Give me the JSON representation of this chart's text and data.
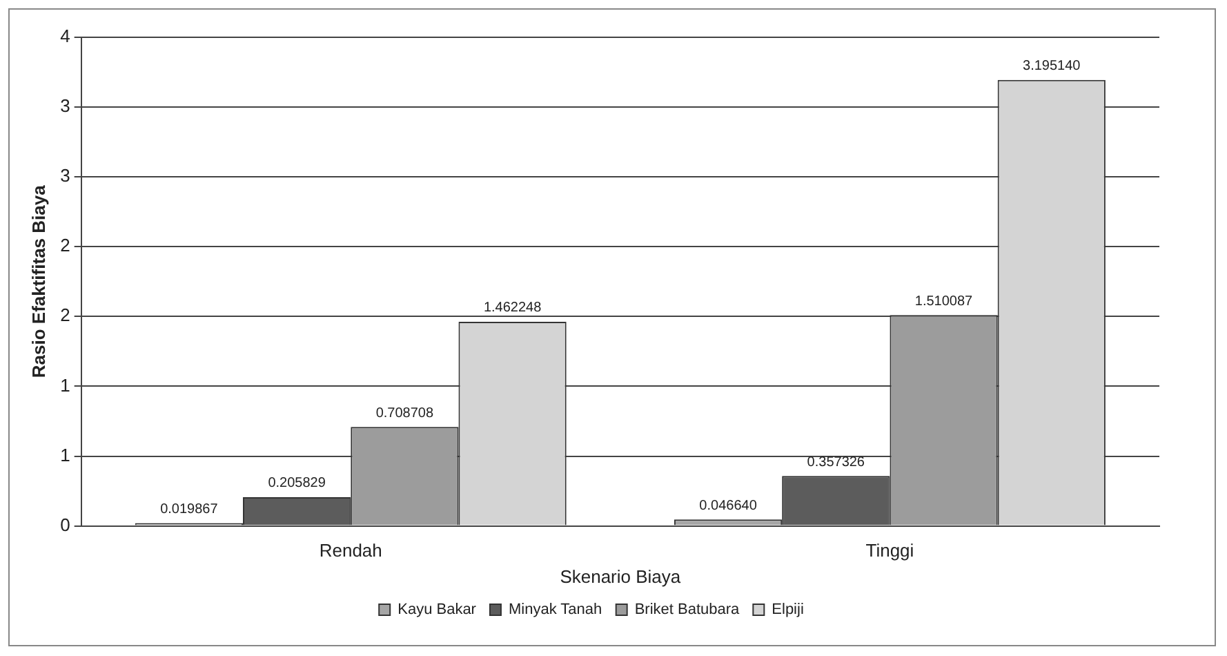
{
  "chart_data": {
    "type": "bar",
    "xlabel": "Skenario Biaya",
    "ylabel": "Rasio Efaktifitas Biaya",
    "categories": [
      "Rendah",
      "Tinggi"
    ],
    "series": [
      {
        "name": "Kayu Bakar",
        "color": "#a6a6a6",
        "values": [
          0.019867,
          0.04664
        ],
        "value_labels": [
          "0.019867",
          "0.046640"
        ]
      },
      {
        "name": "Minyak Tanah",
        "color": "#5c5c5c",
        "values": [
          0.205829,
          0.357326
        ],
        "value_labels": [
          "0.205829",
          "0.357326"
        ]
      },
      {
        "name": "Briket Batubara",
        "color": "#9c9c9c",
        "values": [
          0.708708,
          1.510087
        ],
        "value_labels": [
          "0.708708",
          "1.510087"
        ]
      },
      {
        "name": "Elpiji",
        "color": "#d4d4d4",
        "values": [
          1.462248,
          3.19514
        ],
        "value_labels": [
          "1.462248",
          "3.195140"
        ]
      }
    ],
    "ylim": [
      0,
      3.5
    ],
    "yticks": [
      0,
      {
        "value": 0.5,
        "label": "1"
      },
      1,
      {
        "value": 1.5,
        "label": "2"
      },
      2,
      {
        "value": 2.5,
        "label": "3"
      },
      3,
      {
        "value": 3.5,
        "label": "4"
      }
    ],
    "grid": "y",
    "legend": "bottom"
  }
}
